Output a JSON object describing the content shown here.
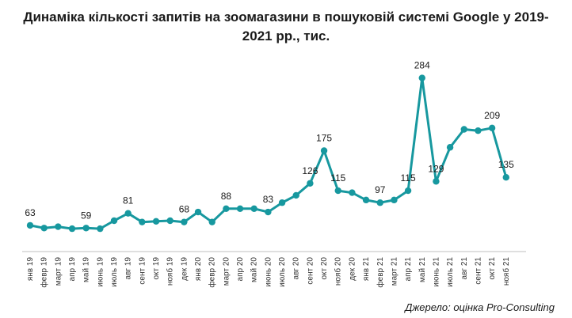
{
  "chart_data": {
    "type": "line",
    "title": "Динаміка кількості запитів на зоомагазини в пошуковій системі Google у 2019-2021 рр., тис.",
    "xlabel": "",
    "ylabel": "",
    "ylim": [
      0,
      300
    ],
    "grid": false,
    "legend": "none",
    "line_color": "#17989f",
    "categories": [
      "янв 19",
      "февр 19",
      "март 19",
      "апр 19",
      "май 19",
      "июнь 19",
      "июль 19",
      "авг 19",
      "сент 19",
      "окт 19",
      "нояб 19",
      "дек 19",
      "янв 20",
      "февр 20",
      "март 20",
      "апр 20",
      "май 20",
      "июнь 20",
      "июль 20",
      "авг 20",
      "сент 20",
      "окт 20",
      "нояб 20",
      "дек 20",
      "янв 21",
      "февр 21",
      "март 21",
      "апр 21",
      "май 21",
      "июнь 21",
      "июль 21",
      "авг 21",
      "сент 21",
      "окт 21",
      "нояб 21"
    ],
    "values": [
      63,
      59,
      61,
      58,
      59,
      58,
      70,
      81,
      68,
      69,
      70,
      68,
      83,
      68,
      88,
      88,
      88,
      83,
      97,
      108,
      126,
      175,
      115,
      112,
      101,
      97,
      101,
      115,
      284,
      129,
      180,
      207,
      205,
      209,
      135
    ],
    "data_labels": [
      {
        "index": 0,
        "text": "63"
      },
      {
        "index": 4,
        "text": "59"
      },
      {
        "index": 7,
        "text": "81"
      },
      {
        "index": 11,
        "text": "68"
      },
      {
        "index": 14,
        "text": "88"
      },
      {
        "index": 17,
        "text": "83"
      },
      {
        "index": 20,
        "text": "126"
      },
      {
        "index": 21,
        "text": "175"
      },
      {
        "index": 22,
        "text": "115"
      },
      {
        "index": 25,
        "text": "97"
      },
      {
        "index": 27,
        "text": "115"
      },
      {
        "index": 28,
        "text": "284"
      },
      {
        "index": 29,
        "text": "129"
      },
      {
        "index": 33,
        "text": "209"
      },
      {
        "index": 34,
        "text": "135"
      }
    ]
  },
  "source": "Джерело: оцінка Pro-Consulting"
}
